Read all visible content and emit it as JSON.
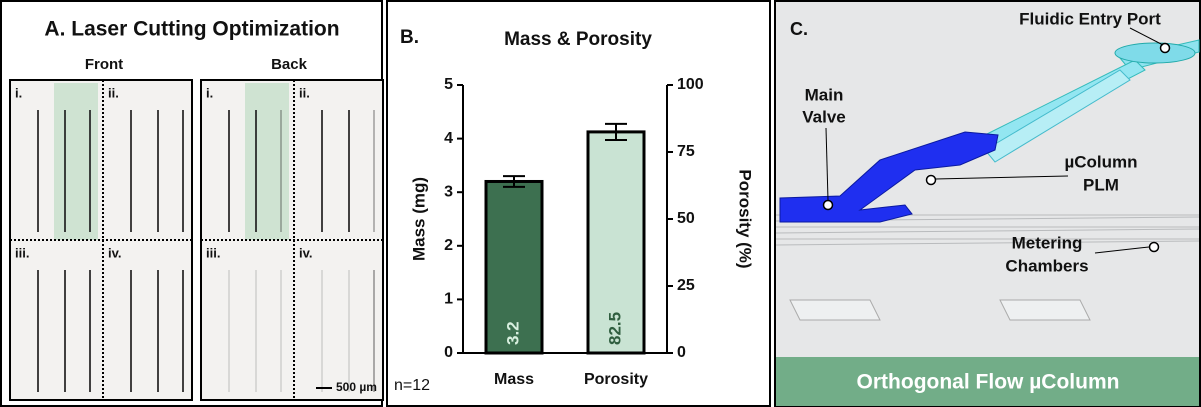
{
  "panel_a": {
    "title": "A. Laser Cutting Optimization",
    "columns": [
      "Front",
      "Back"
    ],
    "quadrants": [
      "i.",
      "ii.",
      "iii.",
      "iv."
    ],
    "scale_bar": "500 µm"
  },
  "chart_data": {
    "type": "bar",
    "panel_label": "B.",
    "title": "Mass & Porosity",
    "y_label": "Mass (mg)",
    "y2_label": "Porosity (%)",
    "note": "n=12",
    "categories": [
      "Mass",
      "Porosity"
    ],
    "series": [
      {
        "name": "Mass",
        "color": "#3d7050",
        "values": [
          3.2,
          null
        ],
        "errors": [
          0.1,
          null
        ]
      },
      {
        "name": "Porosity",
        "color": "#c9e3d3",
        "axis": "y2",
        "values": [
          null,
          82.5
        ],
        "errors": [
          null,
          3
        ]
      }
    ],
    "ylim": [
      0,
      5
    ],
    "yticks": [
      0,
      1,
      2,
      3,
      4,
      5
    ],
    "y2lim": [
      0,
      100
    ],
    "y2ticks": [
      0,
      25,
      50,
      75,
      100
    ],
    "grid": false
  },
  "panel_c": {
    "panel_label": "C.",
    "labels": [
      {
        "lines": [
          "Fluidic Entry Port"
        ]
      },
      {
        "lines": [
          "Main",
          "Valve"
        ]
      },
      {
        "lines": [
          "µColumn",
          "PLM"
        ]
      },
      {
        "lines": [
          "Metering",
          "Chambers"
        ]
      }
    ],
    "banner": "Orthogonal Flow µColumn"
  }
}
